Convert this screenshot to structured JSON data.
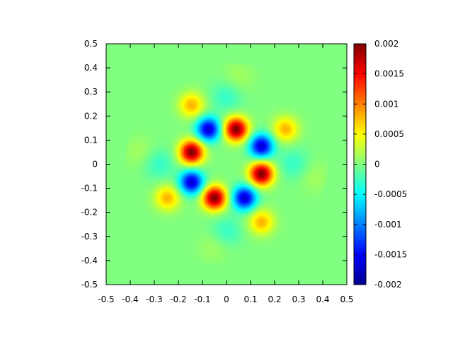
{
  "chart_data": {
    "type": "heatmap",
    "title": "",
    "xlabel": "",
    "ylabel": "",
    "xlim": [
      -0.5,
      0.5
    ],
    "ylim": [
      -0.5,
      0.5
    ],
    "x_ticks": [
      "-0.5",
      "-0.4",
      "-0.3",
      "-0.2",
      "-0.1",
      "0",
      "0.1",
      "0.2",
      "0.3",
      "0.4",
      "0.5"
    ],
    "y_ticks": [
      "0.5",
      "0.4",
      "0.3",
      "0.2",
      "0.1",
      "0",
      "-0.1",
      "-0.2",
      "-0.3",
      "-0.4",
      "-0.5"
    ],
    "colorbar": {
      "range": [
        -0.002,
        0.002
      ],
      "ticks": [
        "0.002",
        "0.0015",
        "0.001",
        "0.0005",
        "0",
        "-0.0005",
        "-0.001",
        "-0.0015",
        "-0.002"
      ],
      "colormap": "jet"
    },
    "peaks": [
      {
        "x": 0.04,
        "y": 0.145,
        "value": 0.002
      },
      {
        "x": -0.145,
        "y": 0.05,
        "value": 0.002
      },
      {
        "x": 0.145,
        "y": -0.04,
        "value": 0.002
      },
      {
        "x": -0.05,
        "y": -0.14,
        "value": 0.002
      },
      {
        "x": -0.075,
        "y": 0.145,
        "value": -0.0017
      },
      {
        "x": 0.145,
        "y": 0.075,
        "value": -0.0017
      },
      {
        "x": -0.145,
        "y": -0.075,
        "value": -0.0017
      },
      {
        "x": 0.075,
        "y": -0.14,
        "value": -0.0017
      },
      {
        "x": -0.145,
        "y": 0.245,
        "value": 0.0008
      },
      {
        "x": 0.245,
        "y": 0.145,
        "value": 0.0008
      },
      {
        "x": -0.245,
        "y": -0.14,
        "value": 0.0008
      },
      {
        "x": 0.145,
        "y": -0.24,
        "value": 0.0008
      },
      {
        "x": 0.0,
        "y": 0.28,
        "value": -0.0003
      },
      {
        "x": 0.28,
        "y": 0.0,
        "value": -0.0003
      },
      {
        "x": -0.28,
        "y": 0.0,
        "value": -0.0003
      },
      {
        "x": 0.0,
        "y": -0.28,
        "value": -0.0003
      },
      {
        "x": 0.05,
        "y": 0.36,
        "value": 0.00015
      },
      {
        "x": 0.36,
        "y": -0.05,
        "value": 0.00015
      },
      {
        "x": -0.36,
        "y": 0.05,
        "value": 0.00015
      },
      {
        "x": -0.05,
        "y": -0.34,
        "value": 0.00015
      }
    ]
  }
}
